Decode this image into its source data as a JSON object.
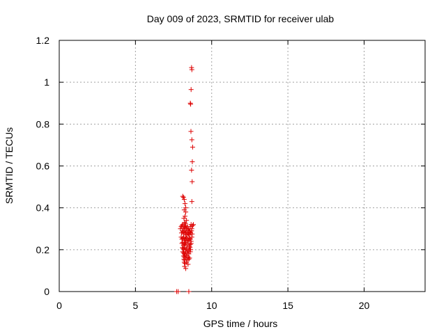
{
  "chart_data": {
    "type": "scatter",
    "title": "Day 009 of 2023, SRMTID for receiver ulab",
    "xlabel": "GPS time / hours",
    "ylabel": "SRMTID / TECUs",
    "xlim": [
      0,
      24
    ],
    "ylim": [
      0,
      1.2
    ],
    "xticks": [
      0,
      5,
      10,
      15,
      20
    ],
    "yticks": [
      0,
      0.2,
      0.4,
      0.6,
      0.8,
      1,
      1.2
    ],
    "xtick_labels": [
      "0",
      "5",
      "10",
      "15",
      "20"
    ],
    "ytick_labels": [
      "0",
      "0.2",
      "0.4",
      "0.6",
      "0.8",
      "1",
      "1.2"
    ],
    "grid": true,
    "marker": "+",
    "series_color": "#dd0000",
    "series": [
      {
        "x": [
          8.68,
          8.7,
          8.65,
          8.6,
          8.62,
          8.64,
          8.7,
          8.75,
          8.73,
          8.68,
          8.72,
          8.7,
          8.1,
          8.15,
          8.2,
          8.25,
          8.3,
          8.2,
          8.3,
          8.25,
          8.18,
          8.35,
          8.22,
          8.28,
          8.0,
          8.05,
          8.1,
          8.15,
          8.2,
          8.25,
          8.3,
          8.35,
          8.4,
          8.45,
          8.5,
          8.55,
          8.6,
          8.65,
          8.7,
          8.75,
          8.8,
          7.95,
          8.02,
          8.08,
          8.12,
          8.18,
          8.22,
          8.28,
          8.32,
          8.38,
          8.42,
          8.48,
          8.52,
          8.58,
          8.62,
          8.68,
          8.72,
          8.0,
          8.05,
          8.1,
          8.15,
          8.2,
          8.25,
          8.3,
          8.35,
          8.4,
          8.45,
          8.5,
          8.55,
          8.6,
          8.65,
          8.7,
          8.05,
          8.1,
          8.15,
          8.2,
          8.25,
          8.3,
          8.4,
          8.5,
          8.55,
          8.6,
          8.65,
          8.08,
          8.12,
          8.18,
          8.22,
          8.28,
          8.35,
          8.45,
          8.52,
          8.58,
          8.62,
          8.1,
          8.15,
          8.2,
          8.3,
          8.4,
          8.5,
          8.6,
          8.15,
          8.2,
          8.25,
          8.35,
          8.45,
          8.55,
          8.18,
          8.22,
          8.3,
          8.4,
          8.5,
          8.2,
          8.25,
          8.35,
          8.45,
          8.22,
          8.3,
          7.7,
          7.8,
          8.5
        ],
        "y": [
          1.07,
          1.06,
          0.965,
          0.9,
          0.895,
          0.765,
          0.725,
          0.69,
          0.62,
          0.58,
          0.525,
          0.43,
          0.455,
          0.45,
          0.44,
          0.42,
          0.4,
          0.39,
          0.38,
          0.36,
          0.35,
          0.34,
          0.33,
          0.325,
          0.31,
          0.315,
          0.32,
          0.3,
          0.31,
          0.305,
          0.315,
          0.3,
          0.31,
          0.295,
          0.3,
          0.29,
          0.31,
          0.32,
          0.3,
          0.315,
          0.32,
          0.3,
          0.28,
          0.29,
          0.285,
          0.275,
          0.29,
          0.28,
          0.285,
          0.27,
          0.28,
          0.275,
          0.27,
          0.285,
          0.28,
          0.29,
          0.275,
          0.26,
          0.25,
          0.255,
          0.26,
          0.245,
          0.25,
          0.26,
          0.255,
          0.24,
          0.25,
          0.245,
          0.255,
          0.25,
          0.24,
          0.26,
          0.23,
          0.235,
          0.22,
          0.23,
          0.225,
          0.235,
          0.22,
          0.23,
          0.215,
          0.225,
          0.23,
          0.21,
          0.205,
          0.2,
          0.21,
          0.2,
          0.205,
          0.195,
          0.2,
          0.21,
          0.2,
          0.19,
          0.185,
          0.18,
          0.19,
          0.185,
          0.18,
          0.19,
          0.17,
          0.165,
          0.175,
          0.17,
          0.165,
          0.16,
          0.155,
          0.15,
          0.16,
          0.15,
          0.155,
          0.14,
          0.135,
          0.14,
          0.13,
          0.12,
          0.11,
          0.0,
          0.0,
          0.0
        ]
      }
    ]
  }
}
